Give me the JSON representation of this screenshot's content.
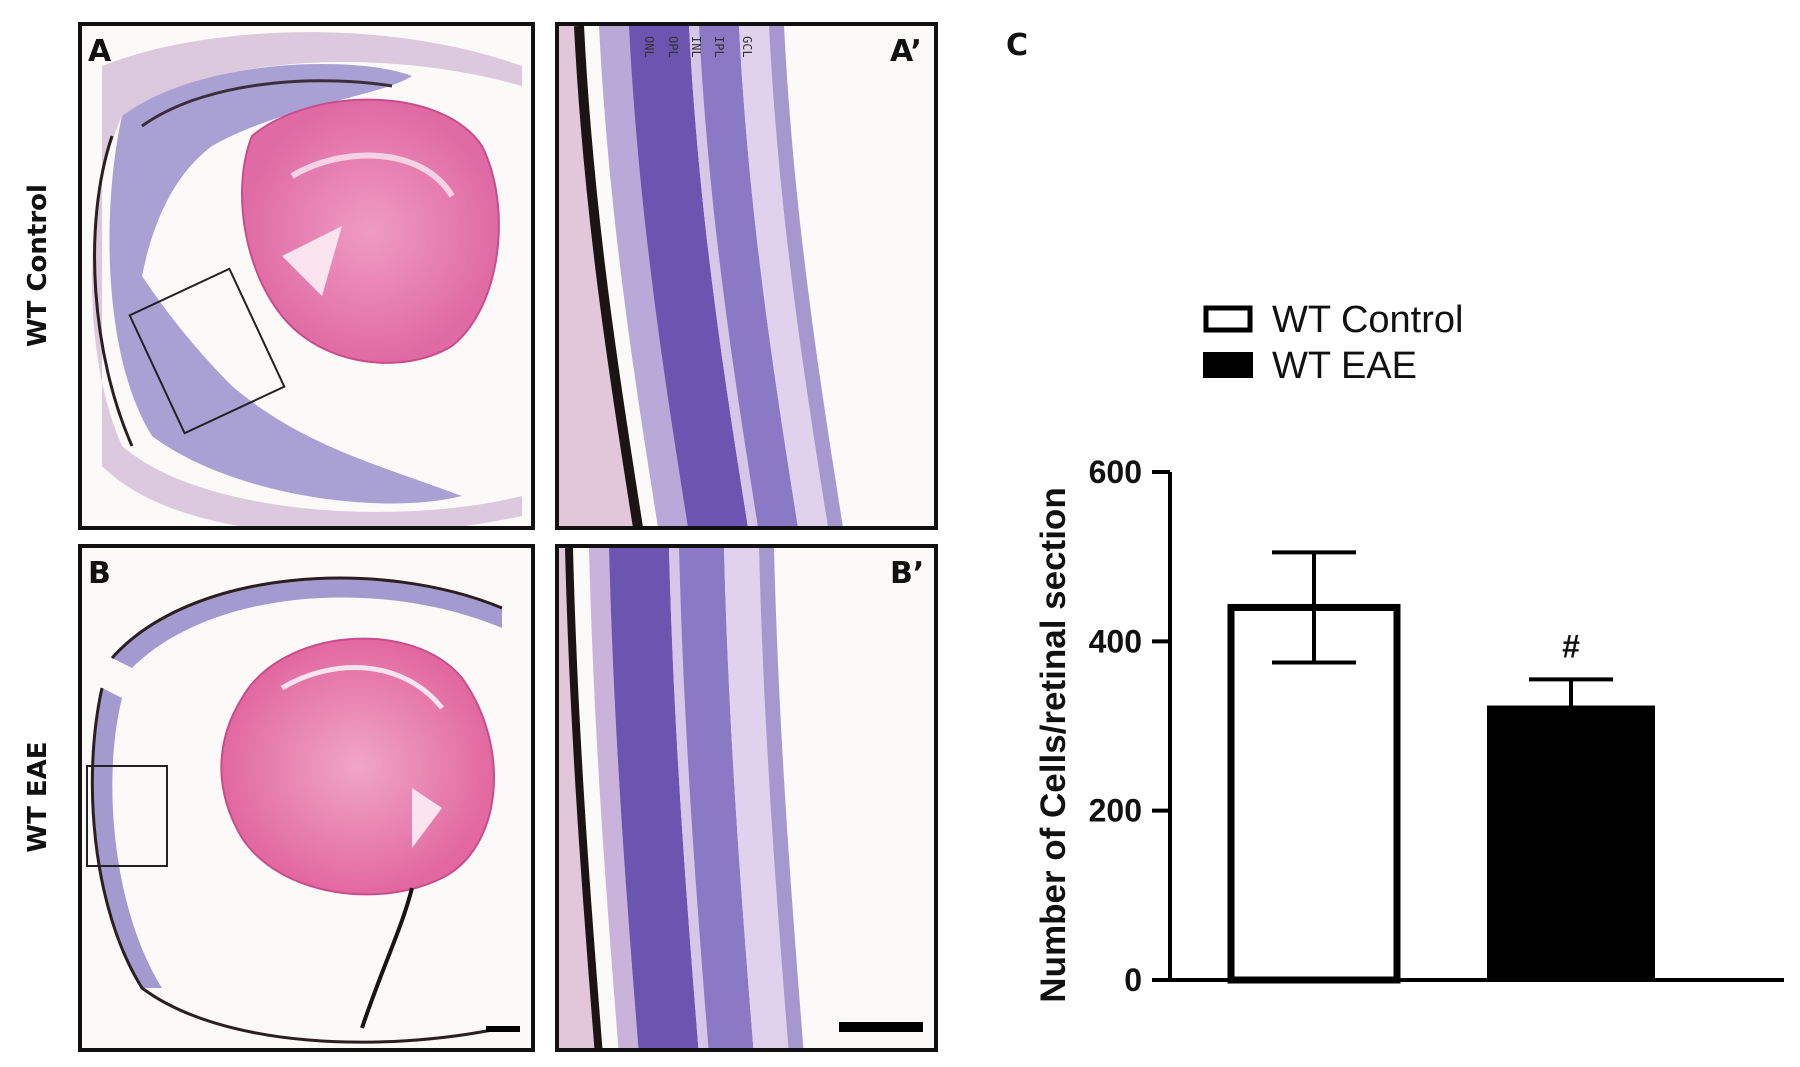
{
  "panels": {
    "A": "A",
    "A_prime": "A’",
    "B": "B",
    "B_prime": "B’",
    "C": "C"
  },
  "row_labels": {
    "top": "WT Control",
    "bottom": "WT EAE"
  },
  "retina_layers": [
    "ONL",
    "OPL",
    "INL",
    "IPL",
    "GCL"
  ],
  "chart_data": {
    "type": "bar",
    "categories": [
      "WT Control",
      "WT EAE"
    ],
    "values": [
      440,
      323
    ],
    "errors": [
      65,
      32
    ],
    "fills": [
      "#ffffff",
      "#000000"
    ],
    "ylabel": "Number of Cells/retinal section",
    "ylim": [
      0,
      600
    ],
    "yticks": [
      0,
      200,
      400,
      600
    ],
    "annotations": [
      {
        "category": "WT EAE",
        "text": "#"
      }
    ],
    "legend": [
      {
        "name": "WT Control",
        "fill": "#ffffff"
      },
      {
        "name": "WT EAE",
        "fill": "#000000"
      }
    ],
    "legend_position": "top",
    "grid": false
  }
}
